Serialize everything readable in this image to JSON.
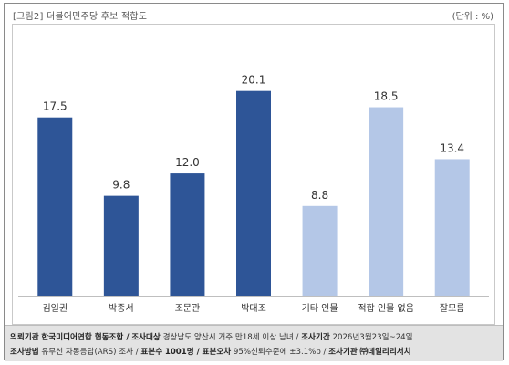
{
  "header": {
    "title": "[그림2] 더불어민주당 후보 적합도",
    "unit": "(단위 : %)"
  },
  "colors": {
    "dark_bar": "#2e5597",
    "light_bar": "#b4c7e7",
    "axis": "#bfbfbf"
  },
  "chart_data": {
    "type": "bar",
    "title": "",
    "xlabel": "",
    "ylabel": "",
    "ylim": [
      0,
      25
    ],
    "grid": false,
    "categories": [
      "김일권",
      "박종서",
      "조문관",
      "박대조",
      "기타 인물",
      "적합 인물 없음",
      "잘모름"
    ],
    "values": [
      17.5,
      9.8,
      12.0,
      20.1,
      8.8,
      18.5,
      13.4
    ],
    "value_labels": [
      "17.5",
      "9.8",
      "12.0",
      "20.1",
      "8.8",
      "18.5",
      "13.4"
    ],
    "bar_colors": [
      "#2e5597",
      "#2e5597",
      "#2e5597",
      "#2e5597",
      "#b4c7e7",
      "#b4c7e7",
      "#b4c7e7"
    ]
  },
  "footer": {
    "l1_k1": "의뢰기관",
    "l1_v1": "한국미디어연합 협동조합 /",
    "l1_k2": "조사대상",
    "l1_v2": "경상남도 양산시 거주 만18세 이상 남녀 /",
    "l1_k3": "조사기간",
    "l1_v3": "2026년3월23일~24일",
    "l2_k1": "조사방법",
    "l2_v1": "유무선 자동응답(ARS) 조사 /",
    "l2_k2": "표본수",
    "l2_v2": "1001명 /",
    "l2_k3": "표본오차",
    "l2_v3": "95%신뢰수준에 ±3.1%p /",
    "l2_k4": "조사기관",
    "l2_v4": "㈜데일리리서치"
  }
}
